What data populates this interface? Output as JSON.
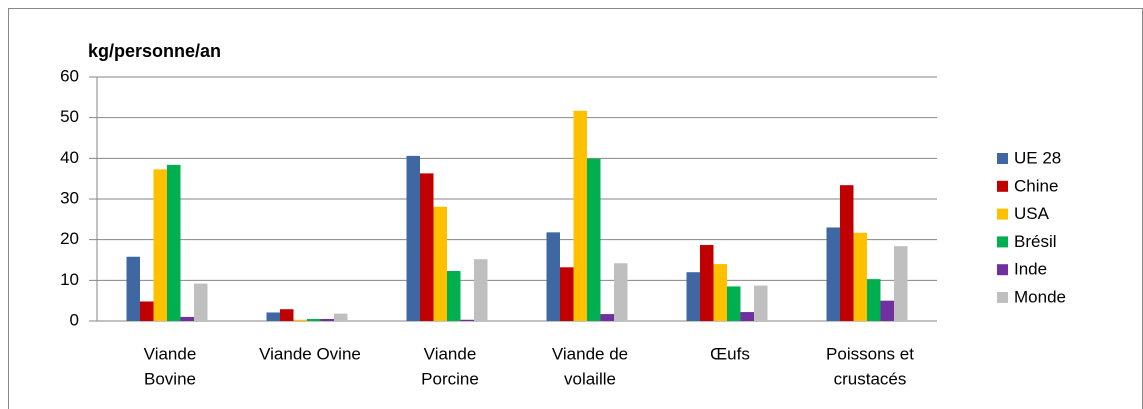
{
  "chart_data": {
    "type": "bar",
    "title": "kg/personne/an",
    "categories": [
      [
        "Viande",
        "Bovine"
      ],
      [
        "Viande Ovine"
      ],
      [
        "Viande",
        "Porcine"
      ],
      [
        "Viande de",
        "volaille"
      ],
      [
        "Œufs"
      ],
      [
        "Poissons et",
        "crustacés"
      ]
    ],
    "series": [
      {
        "name": "UE 28",
        "color": "#3f68a3",
        "values": [
          15.8,
          2.1,
          40.6,
          21.8,
          12.0,
          23.0
        ]
      },
      {
        "name": "Chine",
        "color": "#c00000",
        "values": [
          4.8,
          2.9,
          36.3,
          13.2,
          18.7,
          33.4
        ]
      },
      {
        "name": "USA",
        "color": "#ffc000",
        "values": [
          37.3,
          0.3,
          28.1,
          51.7,
          14.0,
          21.7
        ]
      },
      {
        "name": "Brésil",
        "color": "#00b050",
        "values": [
          38.4,
          0.5,
          12.3,
          39.9,
          8.5,
          10.3
        ]
      },
      {
        "name": "Inde",
        "color": "#7030a0",
        "values": [
          1.0,
          0.5,
          0.3,
          1.7,
          2.2,
          5.0
        ]
      },
      {
        "name": "Monde",
        "color": "#bfbfbf",
        "values": [
          9.2,
          1.8,
          15.2,
          14.2,
          8.7,
          18.4
        ]
      }
    ],
    "ylim": [
      0,
      60
    ],
    "yticks": [
      0,
      10,
      20,
      30,
      40,
      50,
      60
    ],
    "grid": true,
    "legend": "right"
  }
}
